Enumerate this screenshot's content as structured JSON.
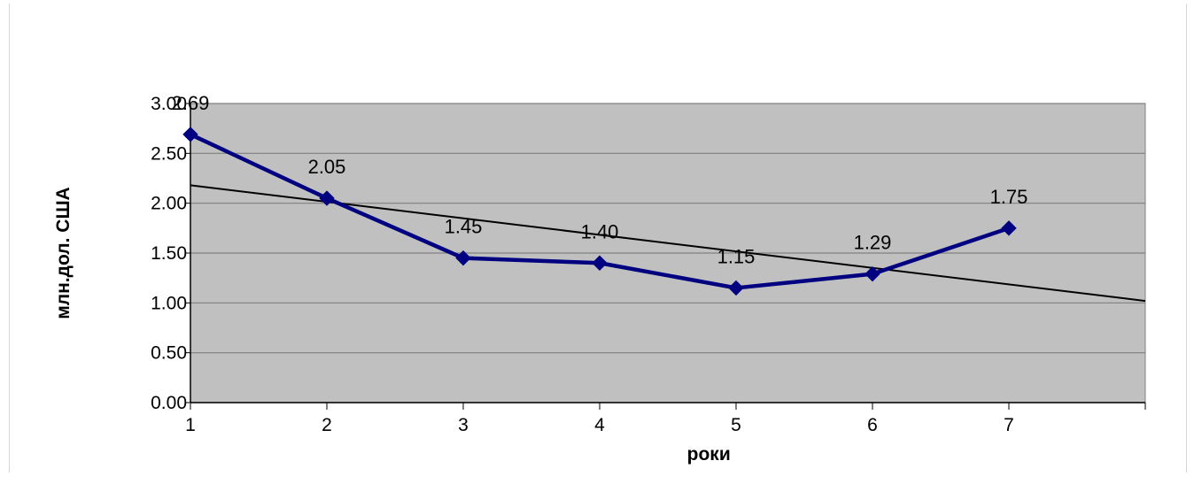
{
  "chart_data": {
    "type": "line",
    "title": "",
    "xlabel": "роки",
    "ylabel": "млн.дол. США",
    "categories": [
      "1",
      "2",
      "3",
      "4",
      "5",
      "6",
      "7"
    ],
    "series": [
      {
        "values": [
          2.69,
          2.05,
          1.45,
          1.4,
          1.15,
          1.29,
          1.75
        ],
        "labels": [
          "2.69",
          "2.05",
          "1.45",
          "1.40",
          "1.15",
          "1.29",
          "1.75"
        ],
        "color": "#000080",
        "marker": "diamond"
      }
    ],
    "trendline": {
      "type": "linear",
      "color": "#000000",
      "x": [
        1,
        8
      ],
      "y": [
        2.18,
        1.02
      ]
    },
    "yticks": [
      "0.00",
      "0.50",
      "1.00",
      "1.50",
      "2.00",
      "2.50",
      "3.00"
    ],
    "ylim": [
      0,
      3
    ],
    "xlim": [
      1,
      8
    ],
    "grid": true,
    "legend": "none",
    "plot_background": "#c0c0c0"
  }
}
